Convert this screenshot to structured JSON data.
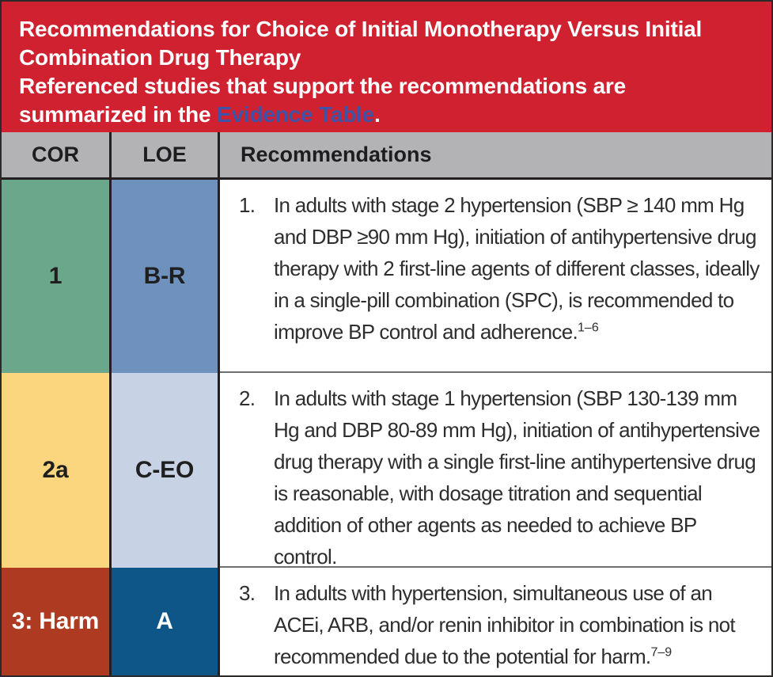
{
  "banner": {
    "bg": "#cf2130",
    "text_color": "#ffffff",
    "title_line1": "Recommendations for Choice of Initial Monotherapy Versus Initial",
    "title_line2": "Combination Drug Therapy",
    "subtitle_prefix": "Referenced studies that support the recommendations are summarized in the ",
    "link_text": "Evidence Table",
    "link_color": "#3e53a5",
    "subtitle_suffix": "."
  },
  "table": {
    "header_bg": "#b3b3b5",
    "headers": {
      "cor": "COR",
      "loe": "LOE",
      "rec": "Recommendations"
    },
    "rows": [
      {
        "cor": "1",
        "cor_bg": "#6ba78b",
        "cor_text_color": "#1f1f1f",
        "loe": "B-R",
        "loe_bg": "#6e92bd",
        "loe_text_color": "#1f1f1f",
        "number": "1.",
        "text": "In adults with stage 2 hypertension (SBP ≥ 140 mm Hg and DBP ≥90 mm Hg), initiation of antihypertensive drug therapy with 2 first-line agents of different classes, ideally in a single-pill combination (SPC), is recommended to improve BP control and adherence.",
        "superscript": "1–6"
      },
      {
        "cor": "2a",
        "cor_bg": "#fcd67e",
        "cor_text_color": "#1f1f1f",
        "loe": "C-EO",
        "loe_bg": "#c7d3e4",
        "loe_text_color": "#1f1f1f",
        "number": "2.",
        "text": "In adults with stage 1 hypertension (SBP 130-139 mm Hg and DBP 80-89 mm Hg), initiation of antihypertensive drug therapy with a single first-line antihypertensive drug is reasonable, with dosage titration and sequential addition of other agents as needed to achieve BP control.",
        "superscript": ""
      },
      {
        "cor": "3: Harm",
        "cor_bg": "#ae3a21",
        "cor_text_color": "#ffffff",
        "loe": "A",
        "loe_bg": "#0d5687",
        "loe_text_color": "#ffffff",
        "number": "3.",
        "text": "In adults with hypertension, simultaneous use of an ACEi, ARB, and/or renin inhibitor in combination is not recommended due to the potential for harm.",
        "superscript": "7–9"
      }
    ]
  }
}
